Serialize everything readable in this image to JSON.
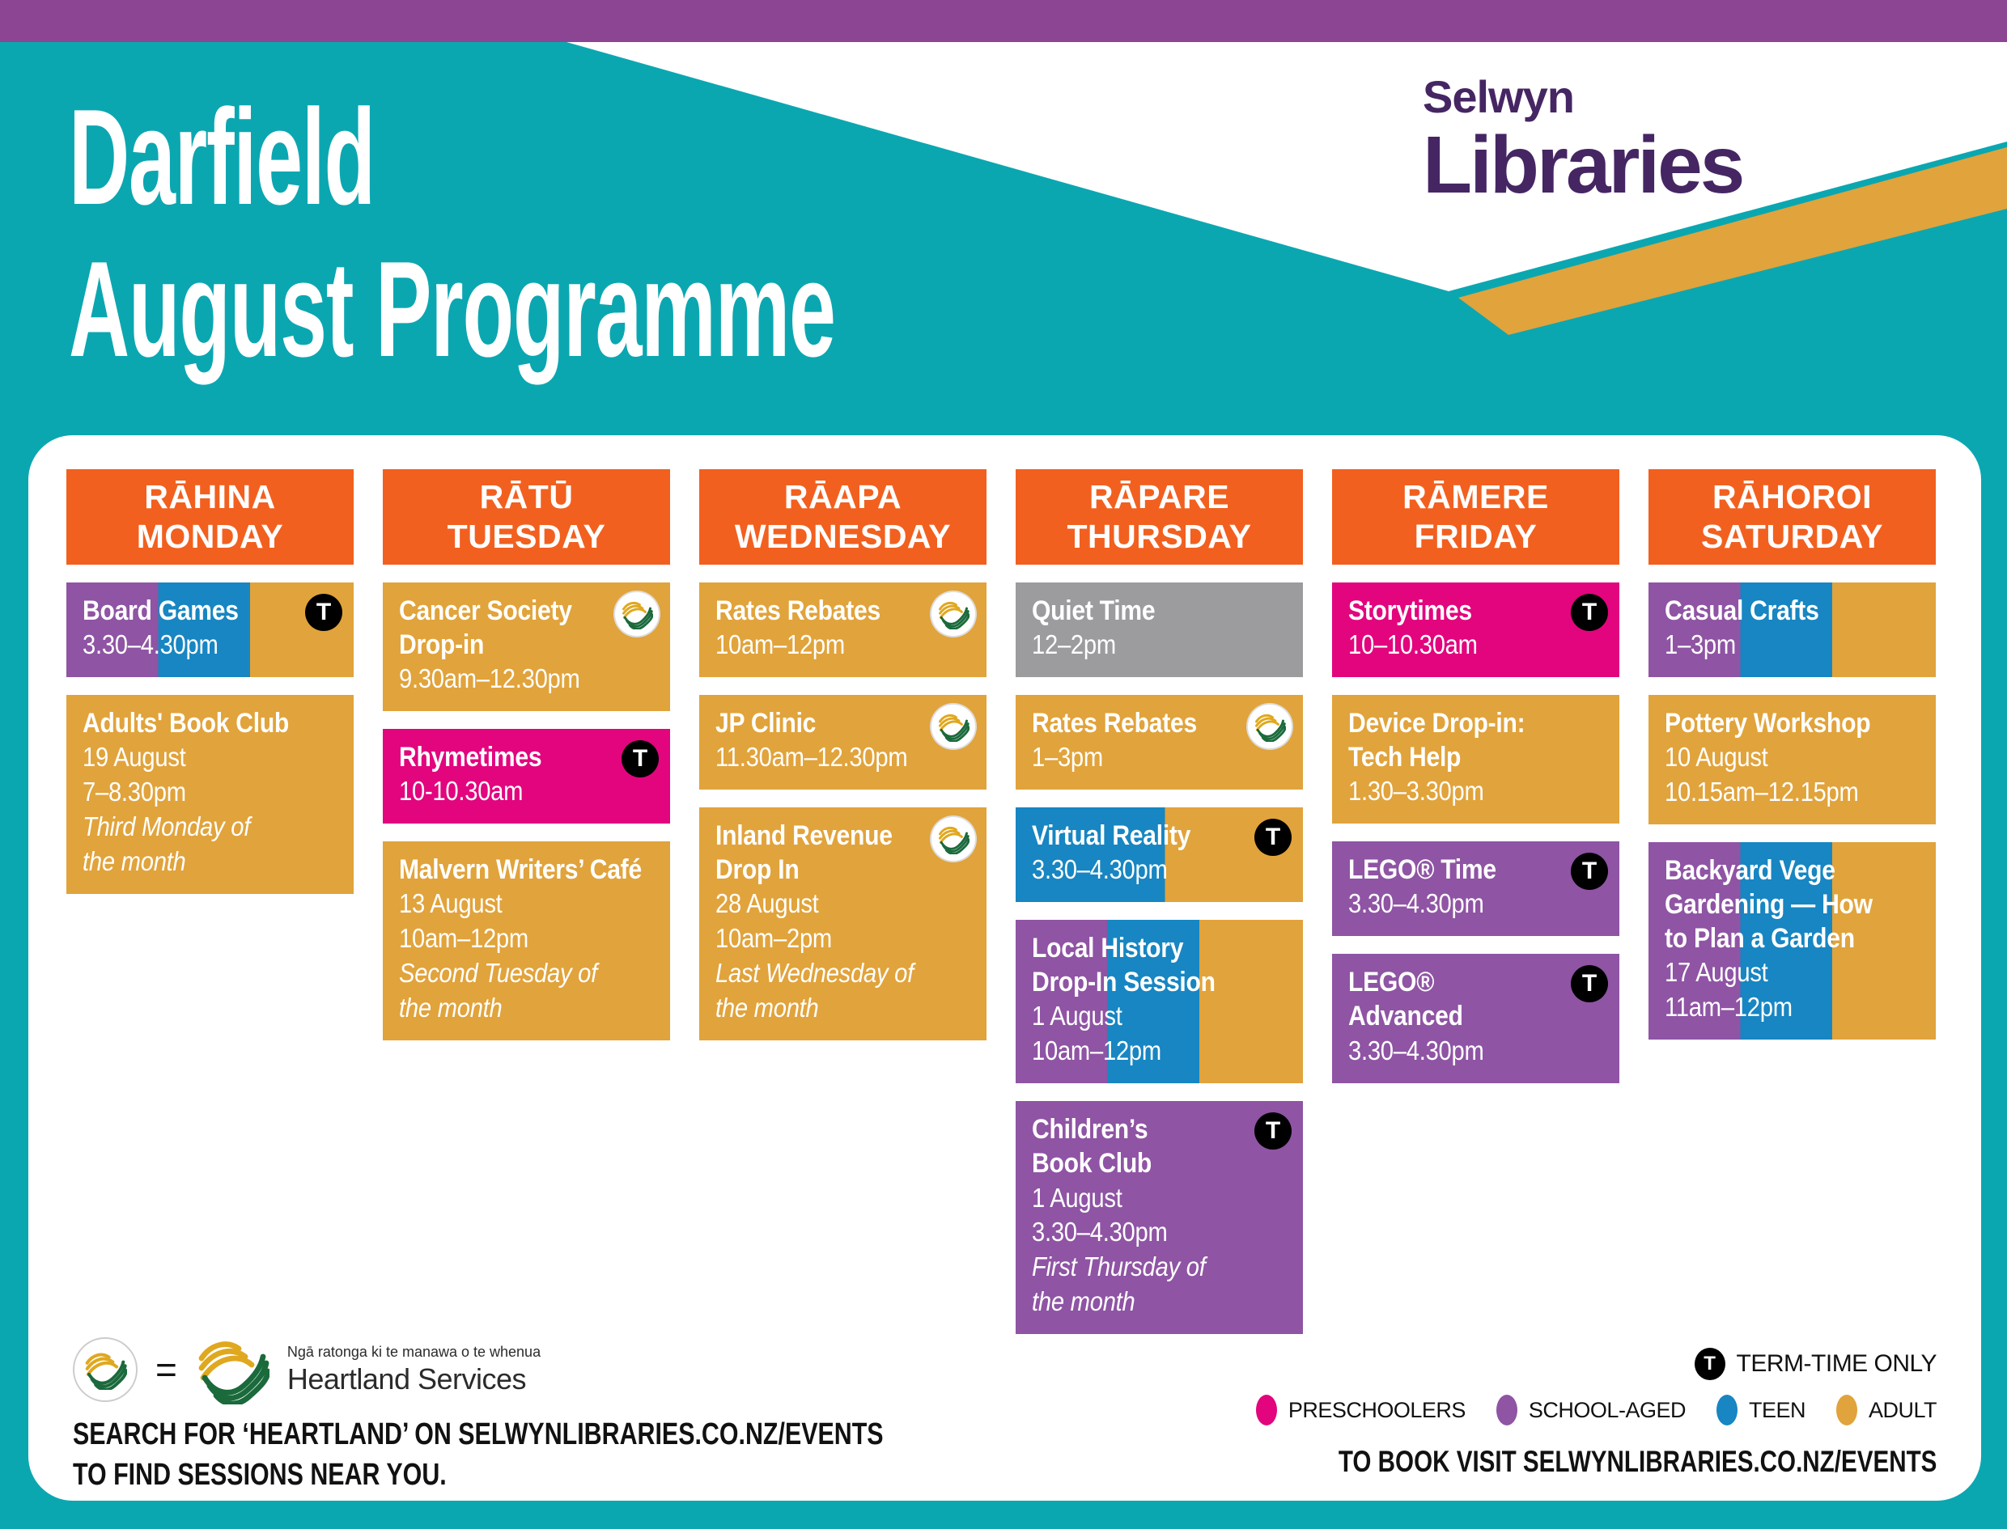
{
  "header": {
    "title_line1": "Darfield",
    "title_line2": "August Programme",
    "logo_line1": "Selwyn",
    "logo_line2": "Libraries"
  },
  "badges": {
    "term": "T"
  },
  "columns": [
    {
      "maori": "RĀHINA",
      "english": "MONDAY",
      "events": [
        {
          "title": "Board Games",
          "lines": [
            "3.30–4.30pm"
          ]
        },
        {
          "title": "Adults' Book Club",
          "lines": [
            "19 August",
            "7–8.30pm",
            "Third Monday of\nthe month"
          ]
        }
      ]
    },
    {
      "maori": "RĀTŪ",
      "english": "TUESDAY",
      "events": [
        {
          "title": "Cancer Society\nDrop-in",
          "lines": [
            "9.30am–12.30pm"
          ]
        },
        {
          "title": "Rhymetimes",
          "lines": [
            "10-10.30am"
          ]
        },
        {
          "title": "Malvern Writers’ Café",
          "lines": [
            "13 August",
            "10am–12pm",
            "Second Tuesday of\nthe month"
          ]
        }
      ]
    },
    {
      "maori": "RĀAPA",
      "english": "WEDNESDAY",
      "events": [
        {
          "title": "Rates Rebates",
          "lines": [
            "10am–12pm"
          ]
        },
        {
          "title": "JP Clinic",
          "lines": [
            "11.30am–12.30pm"
          ]
        },
        {
          "title": "Inland Revenue\nDrop In",
          "lines": [
            "28 August",
            "10am–2pm",
            "Last Wednesday of\nthe month"
          ]
        }
      ]
    },
    {
      "maori": "RĀPARE",
      "english": "THURSDAY",
      "events": [
        {
          "title": "Quiet Time",
          "lines": [
            "12–2pm"
          ]
        },
        {
          "title": "Rates Rebates",
          "lines": [
            "1–3pm"
          ]
        },
        {
          "title": "Virtual Reality",
          "lines": [
            "3.30–4.30pm"
          ]
        },
        {
          "title": "Local History\nDrop-In Session",
          "lines": [
            "1 August",
            "10am–12pm"
          ]
        },
        {
          "title": "Children’s\nBook Club",
          "lines": [
            "1 August",
            "3.30–4.30pm",
            "First Thursday of\nthe month"
          ]
        }
      ]
    },
    {
      "maori": "RĀMERE",
      "english": "FRIDAY",
      "events": [
        {
          "title": "Storytimes",
          "lines": [
            "10–10.30am"
          ]
        },
        {
          "title": "Device Drop-in:\nTech Help",
          "lines": [
            "1.30–3.30pm"
          ]
        },
        {
          "title": "LEGO® Time",
          "lines": [
            "3.30–4.30pm"
          ]
        },
        {
          "title": "LEGO® Advanced",
          "lines": [
            "3.30–4.30pm"
          ]
        }
      ]
    },
    {
      "maori": "RĀHOROI",
      "english": "SATURDAY",
      "events": [
        {
          "title": "Casual Crafts",
          "lines": [
            "1–3pm"
          ]
        },
        {
          "title": "Pottery Workshop",
          "lines": [
            "10 August",
            "10.15am–12.15pm"
          ]
        },
        {
          "title": "Backyard Vege\nGardening — How\nto Plan a Garden",
          "lines": [
            "17 August",
            "11am–12pm"
          ]
        }
      ]
    }
  ],
  "footer": {
    "equals": "=",
    "heartland_tagline": "Ngā ratonga ki te manawa o te whenua",
    "heartland_name": "Heartland Services",
    "search_line1": "SEARCH FOR ‘HEARTLAND’ ON SELWYNLIBRARIES.CO.NZ/EVENTS",
    "search_line2": "TO FIND SESSIONS NEAR YOU.",
    "term_label": "TERM-TIME ONLY",
    "legend": [
      {
        "label": "PRESCHOOLERS",
        "color": "#E2057E"
      },
      {
        "label": "SCHOOL-AGED",
        "color": "#8F54A4"
      },
      {
        "label": "TEEN",
        "color": "#1786C2"
      },
      {
        "label": "ADULT",
        "color": "#E1A33B"
      }
    ],
    "book_line": "TO BOOK VISIT SELWYNLIBRARIES.CO.NZ/EVENTS"
  },
  "palette": {
    "teal": "#0BA7B1",
    "topbar_purple": "#8B4593",
    "orange": "#F2601F",
    "gold": "#E1A33B",
    "pink": "#E2057E",
    "purple": "#8F54A4",
    "blue": "#1786C2",
    "gray": "#9C9B9E",
    "logo_purple": "#452663",
    "heartland_green": "#1B6A3C",
    "heartland_yellow": "#E0A81F"
  }
}
